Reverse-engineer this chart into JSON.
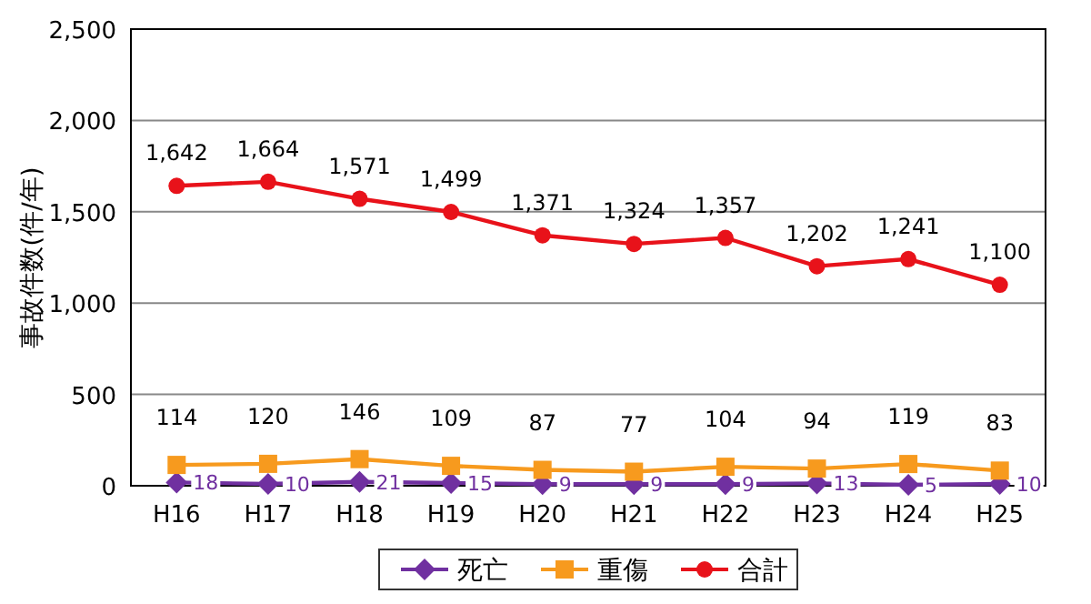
{
  "chart_data": {
    "type": "line",
    "ylabel": "事故件数(件/年)",
    "categories": [
      "H16",
      "H17",
      "H18",
      "H19",
      "H20",
      "H21",
      "H22",
      "H23",
      "H24",
      "H25"
    ],
    "series": [
      {
        "name": "死亡",
        "color": "#7030a0",
        "marker": "diamond",
        "values": [
          18,
          10,
          21,
          15,
          9,
          9,
          9,
          13,
          5,
          10
        ],
        "value_labels": [
          "18",
          "10",
          "21",
          "15",
          "9",
          "9",
          "9",
          "13",
          "5",
          "10"
        ]
      },
      {
        "name": "重傷",
        "color": "#f79a1e",
        "marker": "square",
        "values": [
          114,
          120,
          146,
          109,
          87,
          77,
          104,
          94,
          119,
          83
        ],
        "value_labels": [
          "114",
          "120",
          "146",
          "109",
          "87",
          "77",
          "104",
          "94",
          "119",
          "83"
        ]
      },
      {
        "name": "合計",
        "color": "#e8121a",
        "marker": "circle",
        "values": [
          1642,
          1664,
          1571,
          1499,
          1371,
          1324,
          1357,
          1202,
          1241,
          1100
        ],
        "value_labels": [
          "1,642",
          "1,664",
          "1,571",
          "1,499",
          "1,371",
          "1,324",
          "1,357",
          "1,202",
          "1,241",
          "1,100"
        ]
      }
    ],
    "ylim": [
      0,
      2500
    ],
    "yticks": [
      0,
      500,
      {
        "value": 1000,
        "label": "1,000"
      },
      {
        "value": 1500,
        "label": "1,500"
      },
      {
        "value": 2000,
        "label": "2,000"
      },
      {
        "value": 2500,
        "label": "2,500"
      }
    ],
    "grid": "y",
    "legend": "bottom"
  }
}
